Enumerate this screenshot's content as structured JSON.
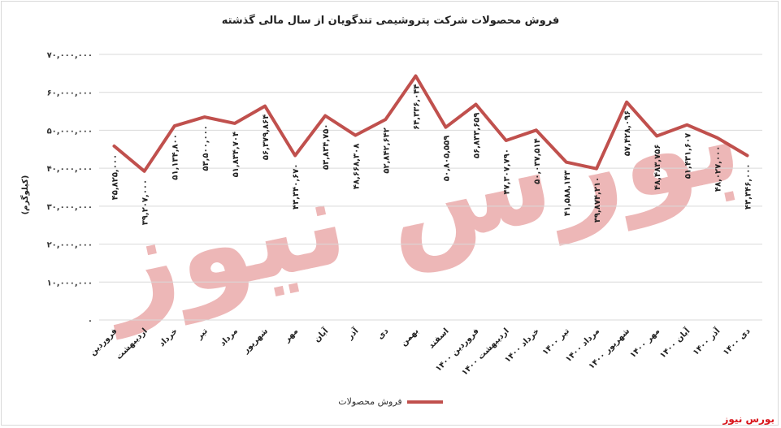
{
  "chart_data": {
    "type": "line",
    "title": "فروش محصولات شرکت پتروشیمی تندگویان از سال مالی گذشته",
    "ylabel": "(کیلوگرم)",
    "xlabel": "",
    "ylim": [
      0,
      70000000
    ],
    "yticks": [
      0,
      10000000,
      20000000,
      30000000,
      40000000,
      50000000,
      60000000,
      70000000
    ],
    "ytick_labels": [
      "۰",
      "۱۰,۰۰۰,۰۰۰",
      "۲۰,۰۰۰,۰۰۰",
      "۳۰,۰۰۰,۰۰۰",
      "۴۰,۰۰۰,۰۰۰",
      "۵۰,۰۰۰,۰۰۰",
      "۶۰,۰۰۰,۰۰۰",
      "۷۰,۰۰۰,۰۰۰"
    ],
    "grid": true,
    "legend_position": "bottom",
    "line_color": "#c0504d",
    "categories": [
      "فروردین",
      "اردیبهشت",
      "خرداد",
      "تیر",
      "مرداد",
      "شهریور",
      "مهر",
      "آبان",
      "آذر",
      "دی",
      "بهمن",
      "اسفند",
      "فروردین ۱۴۰۰",
      "اردیبهشت ۱۴۰۰",
      "خرداد ۱۴۰۰",
      "تیر ۱۴۰۰",
      "مرداد ۱۴۰۰",
      "شهریور ۱۴۰۰",
      "مهر ۱۴۰۰",
      "آبان ۱۴۰۰",
      "آذر ۱۴۰۰",
      "دی ۱۴۰۰"
    ],
    "series": [
      {
        "name": "فروش محصولات",
        "values": [
          45825000,
          39207000,
          51134800,
          53500000,
          51834704,
          56379864,
          43340670,
          53834750,
          48668308,
          52842642,
          64336044,
          50805559,
          56833659,
          47307790,
          50037514,
          41588143,
          39874210,
          57428096,
          48483756,
          51431607,
          48027000,
          43346000
        ],
        "labels": [
          "۴۵,۸۲۵,۰۰۰",
          "۳۹,۲۰۷,۰۰۰",
          "۵۱,۱۳۴,۸۰۰",
          "۵۳,۵۰۰,۰۰۰",
          "۵۱,۸۳۴,۷۰۴",
          "۵۶,۳۷۹,۸۶۴",
          "۴۳,۳۴۰,۶۷۰",
          "۵۳,۸۳۴,۷۵۰",
          "۴۸,۶۶۸,۳۰۸",
          "۵۲,۸۴۲,۶۴۲",
          "۶۴,۳۳۶,۰۴۴",
          "۵۰,۸۰۵,۵۵۹",
          "۵۶,۸۳۳,۶۵۹",
          "۴۷,۳۰۷,۷۹۰",
          "۵۰,۰۳۷,۵۱۴",
          "۴۱,۵۸۸,۱۴۳",
          "۳۹,۸۷۴,۲۱۰",
          "۵۷,۴۲۸,۰۹۶",
          "۴۸,۴۸۳,۷۵۶",
          "۵۱,۴۳۱,۶۰۷",
          "۴۸,۰۲۷,۰۰۰",
          "۴۳,۳۴۶,۰۰۰"
        ]
      }
    ]
  },
  "legend": {
    "label": "فروش محصولات"
  },
  "watermark": {
    "text": "بورس نیوز",
    "color": "#e8a0a0"
  },
  "brand": {
    "text": "بورس نیوز",
    "color": "#d9161c"
  }
}
